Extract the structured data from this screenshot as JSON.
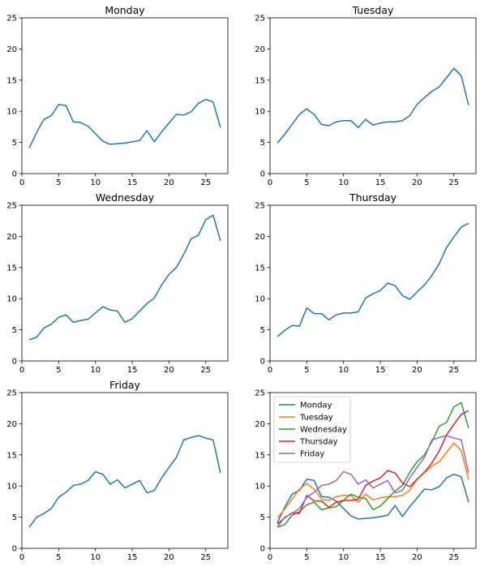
{
  "chart_data": [
    {
      "type": "line",
      "title": "Monday",
      "xlim": [
        0,
        28
      ],
      "ylim": [
        0,
        25
      ],
      "xticks": [
        0,
        5,
        10,
        15,
        20,
        25
      ],
      "yticks": [
        0,
        5,
        10,
        15,
        20,
        25
      ],
      "x": [
        1,
        2,
        3,
        4,
        5,
        6,
        7,
        8,
        9,
        10,
        11,
        12,
        13,
        14,
        15,
        16,
        17,
        18,
        19,
        20,
        21,
        22,
        23,
        24,
        25,
        26,
        27
      ],
      "series": [
        {
          "color": "#1f77b4",
          "values": [
            4.1,
            6.6,
            8.7,
            9.3,
            11.1,
            10.9,
            8.3,
            8.2,
            7.6,
            6.4,
            5.2,
            4.7,
            4.8,
            4.9,
            5.1,
            5.3,
            6.9,
            5.1,
            6.7,
            8.1,
            9.5,
            9.4,
            9.9,
            11.3,
            11.9,
            11.5,
            7.4
          ]
        }
      ]
    },
    {
      "type": "line",
      "title": "Tuesday",
      "xlim": [
        0,
        28
      ],
      "ylim": [
        0,
        25
      ],
      "xticks": [
        0,
        5,
        10,
        15,
        20,
        25
      ],
      "yticks": [
        0,
        5,
        10,
        15,
        20,
        25
      ],
      "x": [
        1,
        2,
        3,
        4,
        5,
        6,
        7,
        8,
        9,
        10,
        11,
        12,
        13,
        14,
        15,
        16,
        17,
        18,
        19,
        20,
        21,
        22,
        23,
        24,
        25,
        26,
        27
      ],
      "series": [
        {
          "color": "#1f77b4",
          "values": [
            4.9,
            6.3,
            7.9,
            9.5,
            10.4,
            9.5,
            7.9,
            7.7,
            8.3,
            8.5,
            8.5,
            7.4,
            8.7,
            7.8,
            8.1,
            8.3,
            8.3,
            8.5,
            9.3,
            11.1,
            12.2,
            13.2,
            13.9,
            15.4,
            16.9,
            15.7,
            11.0
          ]
        }
      ]
    },
    {
      "type": "line",
      "title": "Wednesday",
      "xlim": [
        0,
        28
      ],
      "ylim": [
        0,
        25
      ],
      "xticks": [
        0,
        5,
        10,
        15,
        20,
        25
      ],
      "yticks": [
        0,
        5,
        10,
        15,
        20,
        25
      ],
      "x": [
        1,
        2,
        3,
        4,
        5,
        6,
        7,
        8,
        9,
        10,
        11,
        12,
        13,
        14,
        15,
        16,
        17,
        18,
        19,
        20,
        21,
        22,
        23,
        24,
        25,
        26,
        27
      ],
      "series": [
        {
          "color": "#1f77b4",
          "values": [
            3.4,
            3.8,
            5.3,
            5.9,
            7.0,
            7.4,
            6.2,
            6.5,
            6.7,
            7.7,
            8.7,
            8.2,
            8.0,
            6.2,
            6.8,
            8.0,
            9.2,
            10.1,
            12.2,
            13.9,
            15.0,
            17.1,
            19.6,
            20.2,
            22.7,
            23.4,
            19.3
          ]
        }
      ]
    },
    {
      "type": "line",
      "title": "Thursday",
      "xlim": [
        0,
        28
      ],
      "ylim": [
        0,
        25
      ],
      "xticks": [
        0,
        5,
        10,
        15,
        20,
        25
      ],
      "yticks": [
        0,
        5,
        10,
        15,
        20,
        25
      ],
      "x": [
        1,
        2,
        3,
        4,
        5,
        6,
        7,
        8,
        9,
        10,
        11,
        12,
        13,
        14,
        15,
        16,
        17,
        18,
        19,
        20,
        21,
        22,
        23,
        24,
        25,
        26,
        27
      ],
      "series": [
        {
          "color": "#1f77b4",
          "values": [
            3.9,
            4.9,
            5.7,
            5.6,
            8.5,
            7.6,
            7.6,
            6.6,
            7.4,
            7.7,
            7.7,
            7.9,
            10.1,
            10.8,
            11.3,
            12.5,
            12.1,
            10.5,
            9.9,
            11.1,
            12.2,
            13.7,
            15.6,
            18.2,
            19.9,
            21.5,
            22.1
          ]
        }
      ]
    },
    {
      "type": "line",
      "title": "Friday",
      "xlim": [
        0,
        28
      ],
      "ylim": [
        0,
        25
      ],
      "xticks": [
        0,
        5,
        10,
        15,
        20,
        25
      ],
      "yticks": [
        0,
        5,
        10,
        15,
        20,
        25
      ],
      "x": [
        1,
        2,
        3,
        4,
        5,
        6,
        7,
        8,
        9,
        10,
        11,
        12,
        13,
        14,
        15,
        16,
        17,
        18,
        19,
        20,
        21,
        22,
        23,
        24,
        25,
        26,
        27
      ],
      "series": [
        {
          "color": "#1f77b4",
          "values": [
            3.4,
            5.0,
            5.6,
            6.4,
            8.2,
            9.0,
            10.1,
            10.3,
            10.9,
            12.3,
            11.9,
            10.3,
            11.0,
            9.7,
            10.3,
            10.9,
            8.9,
            9.3,
            11.3,
            13.0,
            14.6,
            17.4,
            17.8,
            18.1,
            17.7,
            17.4,
            12.1
          ]
        }
      ]
    },
    {
      "type": "line",
      "title": "",
      "xlim": [
        0,
        28
      ],
      "ylim": [
        0,
        25
      ],
      "xticks": [
        0,
        5,
        10,
        15,
        20,
        25
      ],
      "yticks": [
        0,
        5,
        10,
        15,
        20,
        25
      ],
      "legend": "upper-left",
      "x": [
        1,
        2,
        3,
        4,
        5,
        6,
        7,
        8,
        9,
        10,
        11,
        12,
        13,
        14,
        15,
        16,
        17,
        18,
        19,
        20,
        21,
        22,
        23,
        24,
        25,
        26,
        27
      ],
      "series": [
        {
          "name": "Monday",
          "color": "#1f77b4",
          "values": [
            4.1,
            6.6,
            8.7,
            9.3,
            11.1,
            10.9,
            8.3,
            8.2,
            7.6,
            6.4,
            5.2,
            4.7,
            4.8,
            4.9,
            5.1,
            5.3,
            6.9,
            5.1,
            6.7,
            8.1,
            9.5,
            9.4,
            9.9,
            11.3,
            11.9,
            11.5,
            7.4
          ]
        },
        {
          "name": "Tuesday",
          "color": "#ff7f0e",
          "values": [
            4.9,
            6.3,
            7.9,
            9.5,
            10.4,
            9.5,
            7.9,
            7.7,
            8.3,
            8.5,
            8.5,
            7.4,
            8.7,
            7.8,
            8.1,
            8.3,
            8.3,
            8.5,
            9.3,
            11.1,
            12.2,
            13.2,
            13.9,
            15.4,
            16.9,
            15.7,
            11.0
          ]
        },
        {
          "name": "Wednesday",
          "color": "#2ca02c",
          "values": [
            3.4,
            3.8,
            5.3,
            5.9,
            7.0,
            7.4,
            6.2,
            6.5,
            6.7,
            7.7,
            8.7,
            8.2,
            8.0,
            6.2,
            6.8,
            8.0,
            9.2,
            10.1,
            12.2,
            13.9,
            15.0,
            17.1,
            19.6,
            20.2,
            22.7,
            23.4,
            19.3
          ]
        },
        {
          "name": "Thursday",
          "color": "#d62728",
          "values": [
            3.9,
            4.9,
            5.7,
            5.6,
            8.5,
            7.6,
            7.6,
            6.6,
            7.4,
            7.7,
            7.7,
            7.9,
            10.1,
            10.8,
            11.3,
            12.5,
            12.1,
            10.5,
            9.9,
            11.1,
            12.2,
            13.7,
            15.6,
            18.2,
            19.9,
            21.5,
            22.1
          ]
        },
        {
          "name": "Friday",
          "color": "#9467bd",
          "values": [
            3.4,
            5.0,
            5.6,
            6.4,
            8.2,
            9.0,
            10.1,
            10.3,
            10.9,
            12.3,
            11.9,
            10.3,
            11.0,
            9.7,
            10.3,
            10.9,
            8.9,
            9.3,
            11.3,
            13.0,
            14.6,
            17.4,
            17.8,
            18.1,
            17.7,
            17.4,
            12.1
          ]
        }
      ]
    }
  ]
}
